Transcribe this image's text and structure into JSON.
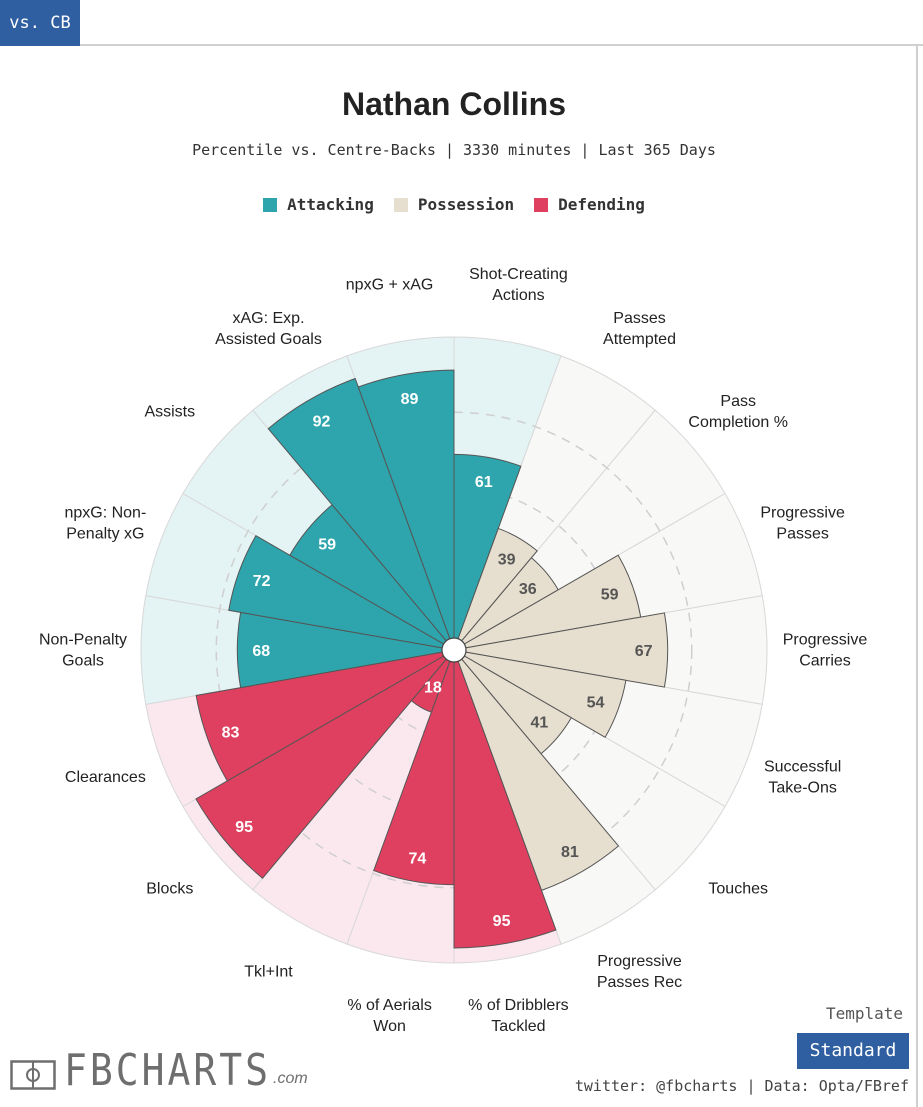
{
  "tab": {
    "label": "vs. CB"
  },
  "chart_data": {
    "type": "polar-bar",
    "title": "Nathan Collins",
    "subtitle": "Percentile vs. Centre-Backs | 3330 minutes | Last 365 Days",
    "rlim": [
      0,
      100
    ],
    "legend": [
      {
        "name": "Attacking",
        "color": "#2ea5ac"
      },
      {
        "name": "Possession",
        "color": "#e6dece"
      },
      {
        "name": "Defending",
        "color": "#e0405f"
      }
    ],
    "categories": [
      {
        "label": "Shot-Creating Actions",
        "lines": [
          "Shot-Creating",
          "Actions"
        ],
        "value": 61,
        "group": "Attacking"
      },
      {
        "label": "Passes Attempted",
        "lines": [
          "Passes",
          "Attempted"
        ],
        "value": 39,
        "group": "Possession"
      },
      {
        "label": "Pass Completion %",
        "lines": [
          "Pass",
          "Completion %"
        ],
        "value": 36,
        "group": "Possession"
      },
      {
        "label": "Progressive Passes",
        "lines": [
          "Progressive",
          "Passes"
        ],
        "value": 59,
        "group": "Possession"
      },
      {
        "label": "Progressive Carries",
        "lines": [
          "Progressive",
          "Carries"
        ],
        "value": 67,
        "group": "Possession"
      },
      {
        "label": "Successful Take-Ons",
        "lines": [
          "Successful",
          "Take-Ons"
        ],
        "value": 54,
        "group": "Possession"
      },
      {
        "label": "Touches",
        "lines": [
          "Touches"
        ],
        "value": 41,
        "group": "Possession"
      },
      {
        "label": "Progressive Passes Rec",
        "lines": [
          "Progressive",
          "Passes Rec"
        ],
        "value": 81,
        "group": "Possession"
      },
      {
        "label": "% of Dribblers Tackled",
        "lines": [
          "% of Dribblers",
          "Tackled"
        ],
        "value": 95,
        "group": "Defending"
      },
      {
        "label": "% of Aerials Won",
        "lines": [
          "% of Aerials",
          "Won"
        ],
        "value": 74,
        "group": "Defending"
      },
      {
        "label": "Tkl+Int",
        "lines": [
          "Tkl+Int"
        ],
        "value": 18,
        "group": "Defending"
      },
      {
        "label": "Blocks",
        "lines": [
          "Blocks"
        ],
        "value": 95,
        "group": "Defending"
      },
      {
        "label": "Clearances",
        "lines": [
          "Clearances"
        ],
        "value": 83,
        "group": "Defending"
      },
      {
        "label": "Non-Penalty Goals",
        "lines": [
          "Non-Penalty",
          "Goals"
        ],
        "value": 68,
        "group": "Attacking"
      },
      {
        "label": "npxG: Non-Penalty xG",
        "lines": [
          "npxG: Non-",
          "Penalty xG"
        ],
        "value": 72,
        "group": "Attacking"
      },
      {
        "label": "Assists",
        "lines": [
          "Assists"
        ],
        "value": 59,
        "group": "Attacking"
      },
      {
        "label": "xAG: Exp. Assisted Goals",
        "lines": [
          "xAG: Exp.",
          "Assisted Goals"
        ],
        "value": 92,
        "group": "Attacking"
      },
      {
        "label": "npxG + xAG",
        "lines": [
          "npxG + xAG"
        ],
        "value": 89,
        "group": "Attacking"
      }
    ]
  },
  "template": {
    "label": "Template",
    "button": "Standard"
  },
  "credit": "twitter: @fbcharts | Data: Opta/FBref",
  "logo": {
    "text": "FBCHARTS",
    "suffix": ".com"
  },
  "colors": {
    "attacking_bg": "#e4f3f4",
    "possession_bg": "#f8f8f7",
    "defending_bg": "#fbe8ee",
    "possession_value_text": "#555555",
    "accent": "#2f5fa0"
  }
}
